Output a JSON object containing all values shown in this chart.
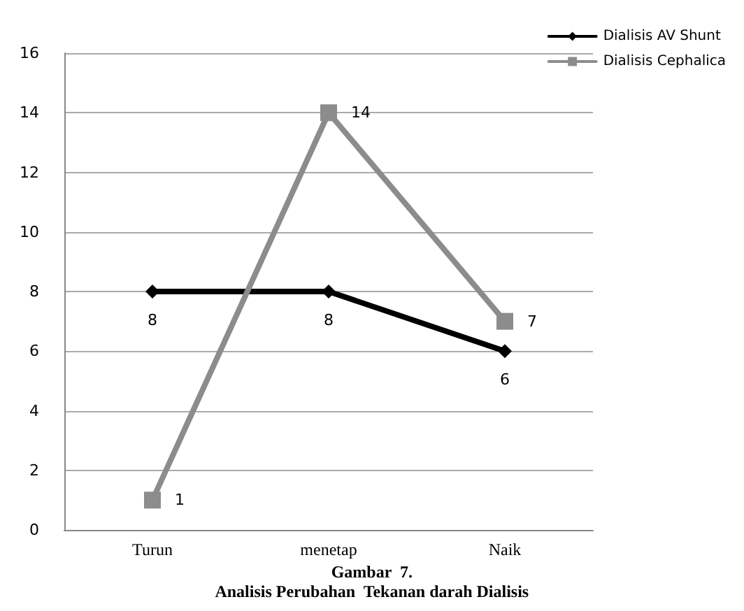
{
  "chart_data": {
    "type": "line",
    "categories": [
      "Turun",
      "menetap",
      "Naik"
    ],
    "series": [
      {
        "name": "Dialisis AV Shunt",
        "color": "#000000",
        "marker": "diamond",
        "values": [
          8,
          8,
          6
        ]
      },
      {
        "name": "Dialisis Cephalica",
        "color": "#8c8c8c",
        "marker": "square",
        "values": [
          1,
          14,
          7
        ]
      }
    ],
    "ylim": [
      0,
      16
    ],
    "yticks": [
      0,
      2,
      4,
      6,
      8,
      10,
      12,
      14,
      16
    ],
    "grid": "y",
    "legend": "top right",
    "data_labels": true,
    "annotations": [
      "Gambar  7.",
      "Analisis Perubahan  Tekanan darah Dialisis"
    ]
  }
}
